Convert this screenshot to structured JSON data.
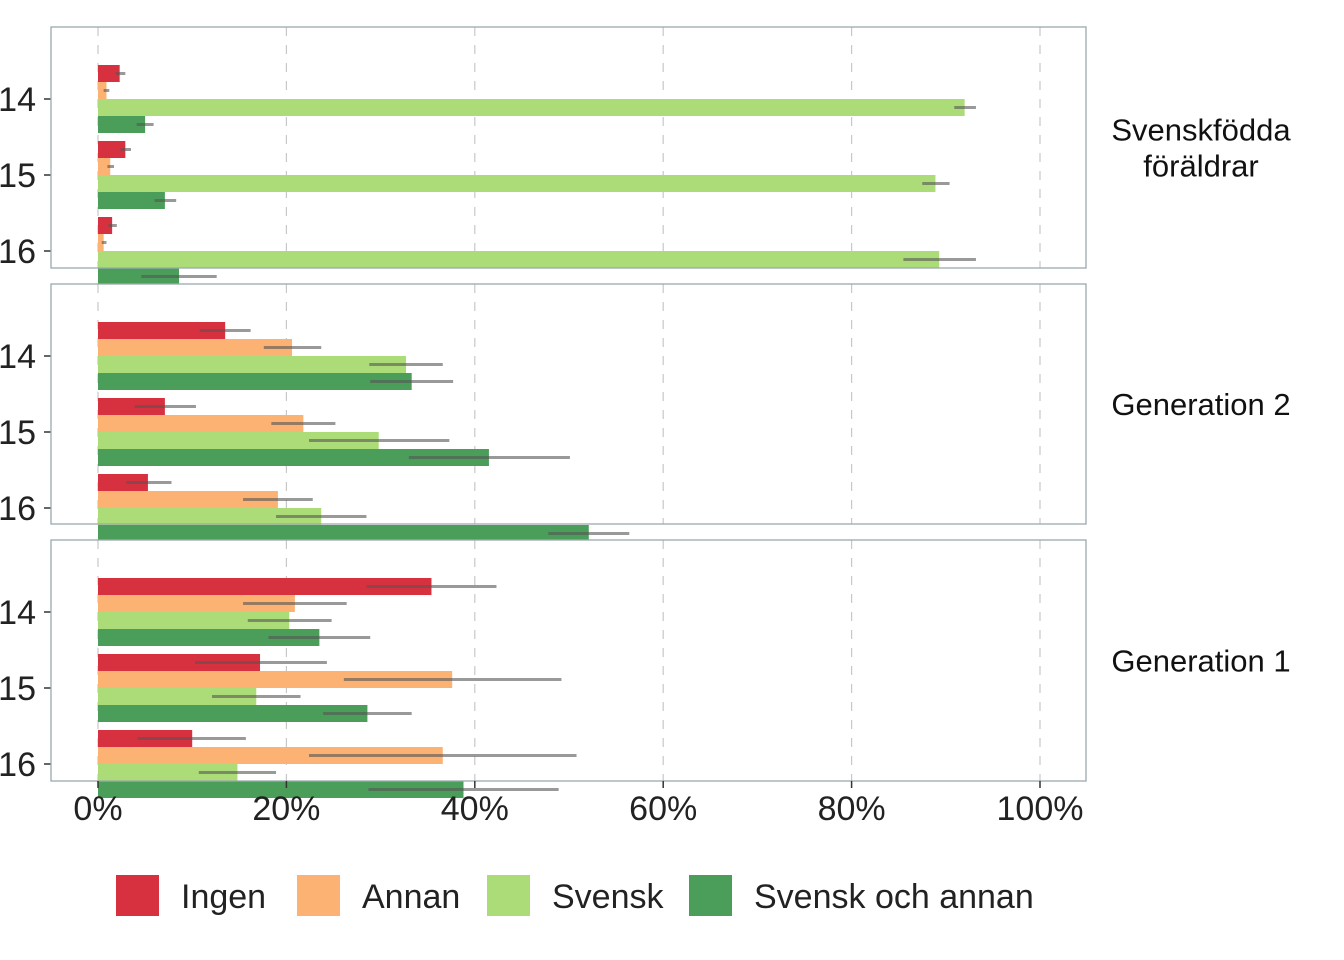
{
  "chart_data": {
    "type": "bar",
    "orientation": "horizontal",
    "facets": [
      {
        "strip_label": [
          "Svenskfödda",
          "föräldrar"
        ],
        "categories": [
          "14",
          "15",
          "16"
        ],
        "series": [
          {
            "name": "Ingen",
            "values": [
              2.3,
              2.9,
              1.5
            ],
            "ci_low": [
              1.9,
              2.4,
              1.1
            ],
            "ci_high": [
              2.9,
              3.5,
              2.0
            ]
          },
          {
            "name": "Annan",
            "values": [
              0.9,
              1.3,
              0.6
            ],
            "ci_low": [
              0.6,
              1.0,
              0.4
            ],
            "ci_high": [
              1.2,
              1.7,
              0.9
            ]
          },
          {
            "name": "Svensk",
            "values": [
              92.0,
              88.9,
              89.3
            ],
            "ci_low": [
              90.9,
              87.5,
              85.5
            ],
            "ci_high": [
              93.2,
              90.4,
              93.2
            ]
          },
          {
            "name": "Svensk och annan",
            "values": [
              5.0,
              7.1,
              8.6
            ],
            "ci_low": [
              4.1,
              6.0,
              4.6
            ],
            "ci_high": [
              5.9,
              8.3,
              12.6
            ]
          }
        ]
      },
      {
        "strip_label": [
          "Generation 2"
        ],
        "categories": [
          "14",
          "15",
          "16"
        ],
        "series": [
          {
            "name": "Ingen",
            "values": [
              13.5,
              7.1,
              5.3
            ],
            "ci_low": [
              10.8,
              3.9,
              3.0
            ],
            "ci_high": [
              16.2,
              10.4,
              7.8
            ]
          },
          {
            "name": "Annan",
            "values": [
              20.6,
              21.8,
              19.1
            ],
            "ci_low": [
              17.6,
              18.4,
              15.4
            ],
            "ci_high": [
              23.7,
              25.2,
              22.8
            ]
          },
          {
            "name": "Svensk",
            "values": [
              32.7,
              29.8,
              23.7
            ],
            "ci_low": [
              28.8,
              22.4,
              18.9
            ],
            "ci_high": [
              36.6,
              37.3,
              28.5
            ]
          },
          {
            "name": "Svensk och annan",
            "values": [
              33.3,
              41.5,
              52.1
            ],
            "ci_low": [
              28.9,
              33.0,
              47.8
            ],
            "ci_high": [
              37.7,
              50.1,
              56.4
            ]
          }
        ]
      },
      {
        "strip_label": [
          "Generation 1"
        ],
        "categories": [
          "14",
          "15",
          "16"
        ],
        "series": [
          {
            "name": "Ingen",
            "values": [
              35.4,
              17.2,
              10.0
            ],
            "ci_low": [
              28.5,
              10.3,
              4.2
            ],
            "ci_high": [
              42.3,
              24.3,
              15.7
            ]
          },
          {
            "name": "Annan",
            "values": [
              20.9,
              37.6,
              36.6
            ],
            "ci_low": [
              15.4,
              26.1,
              22.4
            ],
            "ci_high": [
              26.4,
              49.2,
              50.8
            ]
          },
          {
            "name": "Svensk",
            "values": [
              20.3,
              16.8,
              14.8
            ],
            "ci_low": [
              15.9,
              12.1,
              10.7
            ],
            "ci_high": [
              24.8,
              21.5,
              18.9
            ]
          },
          {
            "name": "Svensk och annan",
            "values": [
              23.5,
              28.6,
              38.8
            ],
            "ci_low": [
              18.1,
              23.9,
              28.7
            ],
            "ci_high": [
              28.9,
              33.3,
              48.9
            ]
          }
        ]
      }
    ],
    "x_ticks": [
      "0%",
      "20%",
      "40%",
      "60%",
      "80%",
      "100%"
    ],
    "x_tick_values": [
      0,
      20,
      40,
      60,
      80,
      100
    ],
    "xlim": [
      -5,
      105
    ],
    "legend": {
      "position": "bottom",
      "entries": [
        "Ingen",
        "Annan",
        "Svensk",
        "Svensk och annan"
      ]
    },
    "grid": "vertical dashed",
    "colors": {
      "Ingen": "#d7303f",
      "Annan": "#fbb272",
      "Svensk": "#acdc77",
      "Svensk och annan": "#4a9e5a",
      "error_bar": "#555555",
      "panel_border": "#9aa9ae",
      "grid": "#c8c8c8"
    }
  }
}
